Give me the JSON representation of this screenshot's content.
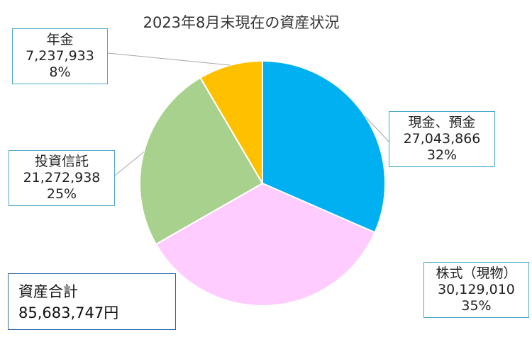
{
  "chart_data": {
    "type": "pie",
    "title": "2023年8月末現在の資産状況",
    "slices": [
      {
        "label": "現金、預金",
        "value": 27043866,
        "value_text": "27,043,866",
        "percent": "32%",
        "color": "#00b0f0"
      },
      {
        "label": "株式（現物）",
        "value": 30129010,
        "value_text": "30,129,010",
        "percent": "35%",
        "color": "#ffccff"
      },
      {
        "label": "投資信託",
        "value": 21272938,
        "value_text": "21,272,938",
        "percent": "25%",
        "color": "#a9d18e"
      },
      {
        "label": "年金",
        "value": 7237933,
        "value_text": "7,237,933",
        "percent": "8%",
        "color": "#ffc000"
      }
    ]
  },
  "total": {
    "label": "資産合計",
    "value": "85,683,747円"
  }
}
